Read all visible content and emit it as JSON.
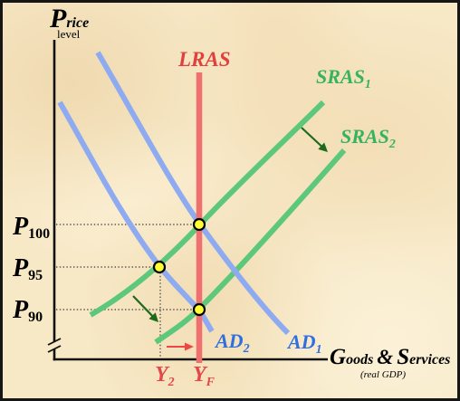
{
  "y_axis": {
    "title_initial": "P",
    "title_rest": "rice",
    "title_subline": "level"
  },
  "x_axis": {
    "title_initial_1": "G",
    "title_rest_1": "oods",
    "title_conjunction": "&",
    "title_initial_2": "S",
    "title_rest_2": "ervices",
    "subtitle": "(real GDP)"
  },
  "curves": {
    "lras": {
      "label": "LRAS"
    },
    "sras1": {
      "label": "SRAS",
      "subscript": "1"
    },
    "sras2": {
      "label": "SRAS",
      "subscript": "2"
    },
    "ad1": {
      "label": "AD",
      "subscript": "1"
    },
    "ad2": {
      "label": "AD",
      "subscript": "2"
    }
  },
  "price_levels": [
    {
      "symbol": "P",
      "subscript": "100"
    },
    {
      "symbol": "P",
      "subscript": "95"
    },
    {
      "symbol": "P",
      "subscript": "90"
    }
  ],
  "output_levels": [
    {
      "symbol": "Y",
      "subscript": "2"
    },
    {
      "symbol": "Y",
      "subscript": "F"
    }
  ],
  "colors": {
    "background": "#f7e8c6",
    "axis": "#111111",
    "guide": "#3a3a3a",
    "lras_line": "#f07070",
    "lras_label": "#e2403f",
    "sras_line": "#5dc87b",
    "sras_label": "#36b35f",
    "ad_line": "#8eaaf0",
    "ad_label": "#2f6fdf",
    "output_label": "#e4474a",
    "point_fill": "#ffff33",
    "point_stroke": "#000000",
    "arrow_green": "#1d6a1d",
    "arrow_red": "#ef4545"
  }
}
